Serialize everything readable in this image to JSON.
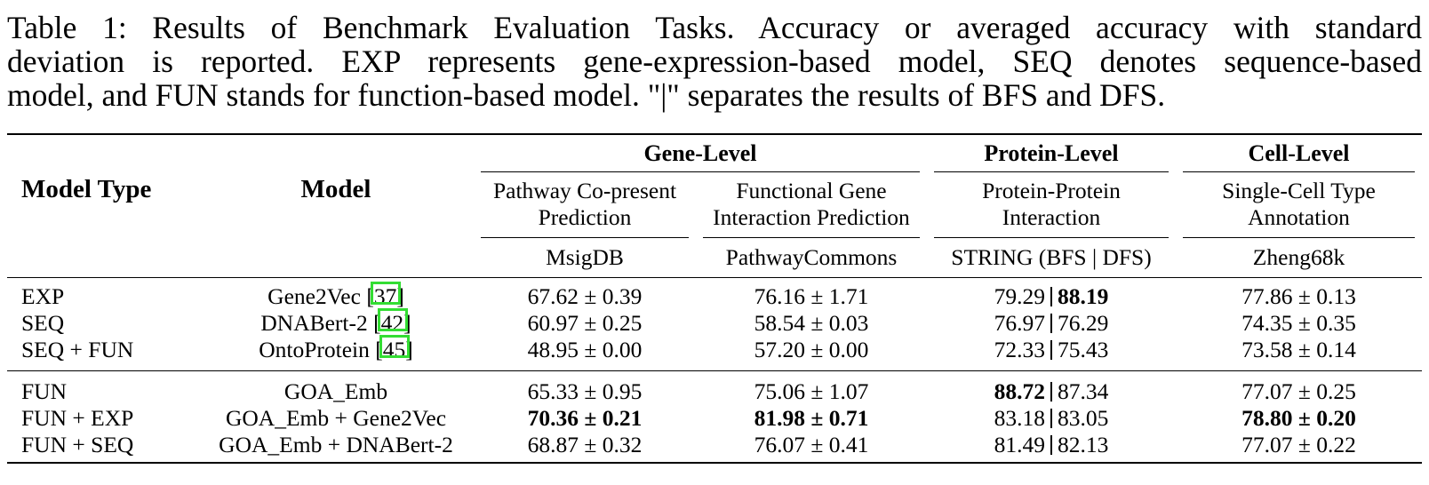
{
  "caption": {
    "line1": "Table 1: Results of Benchmark Evaluation Tasks. Accuracy or averaged accuracy with standard",
    "line2": "deviation is reported. EXP represents gene-expression-based model, SEQ denotes sequence-based",
    "line3": "model, and FUN stands for function-based model. \"|\" separates the results of BFS and DFS."
  },
  "header": {
    "model_type": "Model Type",
    "model": "Model",
    "gene_level": "Gene-Level",
    "protein_level": "Protein-Level",
    "cell_level": "Cell-Level",
    "task1_l1": "Pathway Co-present",
    "task1_l2": "Prediction",
    "task2_l1": "Functional Gene",
    "task2_l2": "Interaction Prediction",
    "task3_l1": "Protein-Protein",
    "task3_l2": "Interaction",
    "task4_l1": "Single-Cell Type",
    "task4_l2": "Annotation",
    "ds1": "MsigDB",
    "ds2": "PathwayCommons",
    "ds3": "STRING (BFS | DFS)",
    "ds4": "Zheng68k"
  },
  "group1": [
    {
      "type": "EXP",
      "model": "Gene2Vec",
      "cite": "37",
      "msig": "67.62 ± 0.39",
      "pc": "76.16 ± 1.71",
      "bfs": "79.29",
      "dfs": "88.19",
      "zheng": "77.86 ± 0.13"
    },
    {
      "type": "SEQ",
      "model": "DNABert-2",
      "cite": "42",
      "msig": "60.97 ± 0.25",
      "pc": "58.54 ± 0.03",
      "bfs": "76.97",
      "dfs": "76.29",
      "zheng": "74.35 ± 0.35"
    },
    {
      "type": "SEQ + FUN",
      "model": "OntoProtein",
      "cite": "45",
      "msig": "48.95 ± 0.00",
      "pc": "57.20 ± 0.00",
      "bfs": "72.33",
      "dfs": "75.43",
      "zheng": "73.58 ± 0.14"
    }
  ],
  "group2": [
    {
      "type": "FUN",
      "model": "GOA_Emb",
      "msig": "65.33 ± 0.95",
      "pc": "75.06 ± 1.07",
      "bfs": "88.72",
      "dfs": "87.34",
      "zheng": "77.07 ± 0.25"
    },
    {
      "type": "FUN + EXP",
      "model": "GOA_Emb + Gene2Vec",
      "msig": "70.36 ± 0.21",
      "pc": "81.98 ± 0.71",
      "bfs": "83.18",
      "dfs": "83.05",
      "zheng": "78.80 ± 0.20"
    },
    {
      "type": "FUN + SEQ",
      "model": "GOA_Emb + DNABert-2",
      "msig": "68.87 ± 0.32",
      "pc": "76.07 ± 0.41",
      "bfs": "81.49",
      "dfs": "82.13",
      "zheng": "77.07 ± 0.22"
    }
  ],
  "colors": {
    "highlight_box": "#33dd33"
  }
}
